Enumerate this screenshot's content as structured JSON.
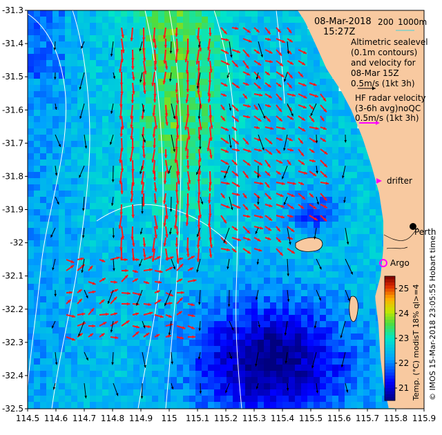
{
  "map": {
    "lon_range": [
      114.5,
      115.9
    ],
    "lat_range": [
      -32.5,
      -31.3
    ],
    "x_ticks": [
      "114.5",
      "114.6",
      "114.7",
      "114.8",
      "114.9",
      "115",
      "115.1",
      "115.2",
      "115.3",
      "115.4",
      "115.5",
      "115.6",
      "115.7",
      "115.8",
      "115.9"
    ],
    "y_ticks": [
      "-31.3",
      "-31.4",
      "-31.5",
      "-31.6",
      "-31.7",
      "-31.8",
      "-31.9",
      "-32",
      "-32.1",
      "-32.2",
      "-32.3",
      "-32.4",
      "-32.5"
    ],
    "colors": {
      "land": "#f8c9a0",
      "contour": "#ffffff",
      "model_arrow": "#000000",
      "radar_arrow": "#ff1a1a",
      "drifter": "#ff00ff",
      "argo": "#ff00ff"
    }
  },
  "legend": {
    "date": "08-Mar-2018",
    "time": "15:27Z",
    "scale_200": "200",
    "scale_1000": "1000m",
    "alt_line1": "Altimetric sealevel",
    "alt_line2": "(0.1m contours)",
    "alt_line3": "and velocity for",
    "alt_line4": "08-Mar 15Z",
    "alt_line5": "0.5m/s (1kt 3h)",
    "hf_line1": "HF radar velocity",
    "hf_line2": "(3-6h avg)noQC",
    "hf_line3": "0.5m/s (1kt 3h)",
    "drifter": "drifter",
    "argo": "Argo",
    "perth": "Perth"
  },
  "colorbar": {
    "ticks": [
      "21",
      "22",
      "23",
      "24",
      "25"
    ],
    "range": [
      20.5,
      25.5
    ],
    "label": "Temp. (°C) modisT 18% ql>=4"
  },
  "credit": "© IMOS 15-Mar-2018 23:05:55 Hobart time"
}
